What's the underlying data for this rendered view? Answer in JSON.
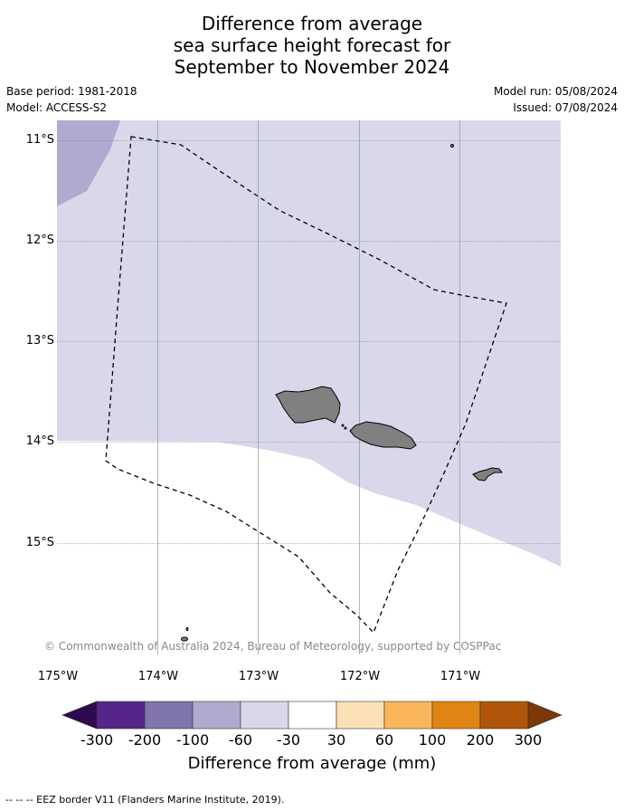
{
  "title": {
    "line1": "Difference from average",
    "line2": "sea surface height forecast for",
    "line3": "September to November 2024"
  },
  "meta": {
    "base_period": "Base period: 1981-2018",
    "model": "Model: ACCESS-S2",
    "model_run": "Model run: 05/08/2024",
    "issued": "Issued: 07/08/2024"
  },
  "map": {
    "lat_labels": [
      "11°S",
      "12°S",
      "13°S",
      "14°S",
      "15°S"
    ],
    "lon_labels": [
      "175°W",
      "174°W",
      "173°W",
      "172°W",
      "171°W"
    ],
    "copyright": "© Commonwealth of Australia 2024, Bureau of Meteorology, supported by COSPPac",
    "colors": {
      "band_100_60": "#b1a9cf",
      "band_60_30": "#d8d8ea",
      "band_neutral": "#ffffff",
      "land": "#808080"
    }
  },
  "colorbar": {
    "ticks": [
      "-300",
      "-200",
      "-100",
      "-60",
      "-30",
      "30",
      "60",
      "100",
      "200",
      "300"
    ],
    "colors": [
      "#2e0b4f",
      "#55258a",
      "#8075ad",
      "#b1a9cf",
      "#d8d8ea",
      "#ffffff",
      "#fde0b6",
      "#fbb55b",
      "#e08414",
      "#b15508",
      "#7a3806"
    ],
    "label": "Difference from average (mm)"
  },
  "footnote": "--  --  -- EEZ border V11 (Flanders Marine Institute, 2019)."
}
